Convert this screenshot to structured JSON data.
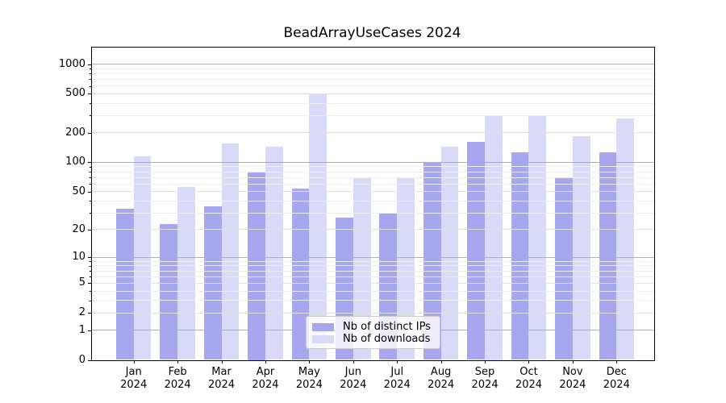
{
  "title": "BeadArrayUseCases 2024",
  "legend": {
    "items": [
      {
        "label": "Nb of distinct IPs",
        "color": "#a7a7f0"
      },
      {
        "label": "Nb of downloads",
        "color": "#d9d9f8"
      }
    ]
  },
  "chart_data": {
    "type": "bar",
    "title": "BeadArrayUseCases 2024",
    "categories": [
      "Jan 2024",
      "Feb 2024",
      "Mar 2024",
      "Apr 2024",
      "May 2024",
      "Jun 2024",
      "Jul 2024",
      "Aug 2024",
      "Sep 2024",
      "Oct 2024",
      "Nov 2024",
      "Dec 2024"
    ],
    "series": [
      {
        "name": "Nb of distinct IPs",
        "color": "#a7a7f0",
        "values": [
          33,
          23,
          35,
          79,
          54,
          27,
          30,
          100,
          163,
          127,
          70,
          127
        ]
      },
      {
        "name": "Nb of downloads",
        "color": "#d9d9f8",
        "values": [
          115,
          56,
          156,
          145,
          500,
          70,
          70,
          145,
          305,
          300,
          185,
          280
        ]
      }
    ],
    "xlabel": "",
    "ylabel": "",
    "yscale": "symlog",
    "y_ticks": [
      0,
      1,
      2,
      5,
      10,
      20,
      50,
      100,
      200,
      500,
      1000
    ],
    "ylim": [
      0,
      1450
    ],
    "grid": true,
    "legend_position": "lower center"
  },
  "colors": {
    "major_grid": "#b0b0b0",
    "labeled_grid": "#e0e0e0",
    "minor_grid": "#ededed",
    "spine": "#000000",
    "background": "#ffffff"
  }
}
